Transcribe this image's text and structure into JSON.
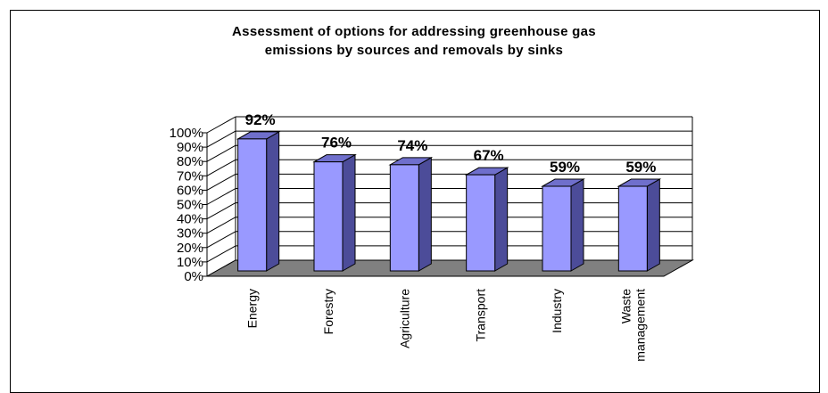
{
  "chart_data": {
    "type": "bar",
    "title_lines": [
      "Assessment of options for addressing greenhouse gas",
      "emissions by sources and removals by sinks"
    ],
    "categories": [
      [
        "Energy"
      ],
      [
        "Forestry"
      ],
      [
        "Agriculture"
      ],
      [
        "Transport"
      ],
      [
        "Industry"
      ],
      [
        "Waste",
        "management"
      ]
    ],
    "values": [
      92,
      76,
      74,
      67,
      59,
      59
    ],
    "data_labels": [
      "92%",
      "76%",
      "74%",
      "67%",
      "59%",
      "59%"
    ],
    "y_ticks": [
      "0%",
      "10%",
      "20%",
      "30%",
      "40%",
      "50%",
      "60%",
      "70%",
      "80%",
      "90%",
      "100%"
    ],
    "ylim": [
      0,
      100
    ],
    "xlabel": "",
    "ylabel": "",
    "grid": true,
    "legend": "none",
    "style": "3d-column",
    "colors": {
      "bar_front": "#9999ff",
      "bar_side": "#4c4c99",
      "bar_top": "#6f6fcc",
      "floor": "#808080",
      "grid": "#000000"
    }
  }
}
